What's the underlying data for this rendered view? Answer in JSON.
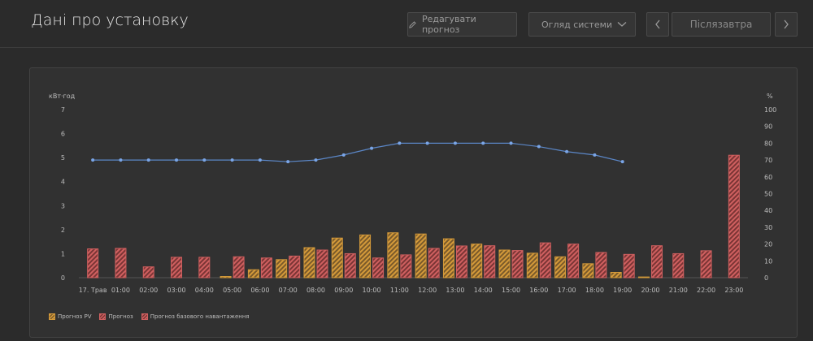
{
  "header": {
    "title": "Дані про установку",
    "edit_label": "Редагувати прогноз",
    "overview_label": "Огляд системи",
    "day_label": "Післязавтра"
  },
  "colors": {
    "pv": "#d49a3a",
    "load": "#d06060",
    "line": "#5b87c8"
  },
  "chart_data": {
    "type": "bar",
    "y_left_label": "кВт·год",
    "y_right_label": "%",
    "ylim_left": [
      0,
      7
    ],
    "yticks_left": [
      0,
      1,
      2,
      3,
      4,
      5,
      6,
      7
    ],
    "ylim_right": [
      0,
      100
    ],
    "yticks_right": [
      0,
      10,
      20,
      30,
      40,
      50,
      60,
      70,
      80,
      90,
      100
    ],
    "categories": [
      "17. Трав",
      "01:00",
      "02:00",
      "03:00",
      "04:00",
      "05:00",
      "06:00",
      "07:00",
      "08:00",
      "09:00",
      "10:00",
      "11:00",
      "12:00",
      "13:00",
      "14:00",
      "15:00",
      "16:00",
      "17:00",
      "18:00",
      "19:00",
      "20:00",
      "21:00",
      "22:00",
      "23:00"
    ],
    "series": [
      {
        "name": "Прогноз PV",
        "kind": "bar",
        "values": [
          0,
          0,
          0,
          0,
          0,
          0.05,
          0.33,
          0.75,
          1.25,
          1.65,
          1.78,
          1.87,
          1.82,
          1.62,
          1.4,
          1.15,
          1.02,
          0.87,
          0.58,
          0.22,
          0.03,
          0,
          0,
          0
        ]
      },
      {
        "name": "Прогноз",
        "kind": "bar",
        "values": [
          1.2,
          1.22,
          0.45,
          0.85,
          0.85,
          0.87,
          0.82,
          0.9,
          1.15,
          1.0,
          0.82,
          0.95,
          1.22,
          1.32,
          1.33,
          1.13,
          1.45,
          1.4,
          1.05,
          0.97,
          1.33,
          1.0,
          1.12,
          5.1
        ]
      },
      {
        "name": "",
        "kind": "line",
        "axis": "right",
        "values": [
          70,
          70,
          70,
          70,
          70,
          70,
          70,
          69,
          70,
          73,
          77,
          80,
          80,
          80,
          80,
          80,
          78,
          75,
          73,
          69,
          null,
          null,
          null,
          null
        ]
      }
    ],
    "legend": [
      "Прогноз PV",
      "Прогноз",
      "Прогноз базового навантаження"
    ],
    "legend_position": "bottom-left",
    "grid": false
  }
}
